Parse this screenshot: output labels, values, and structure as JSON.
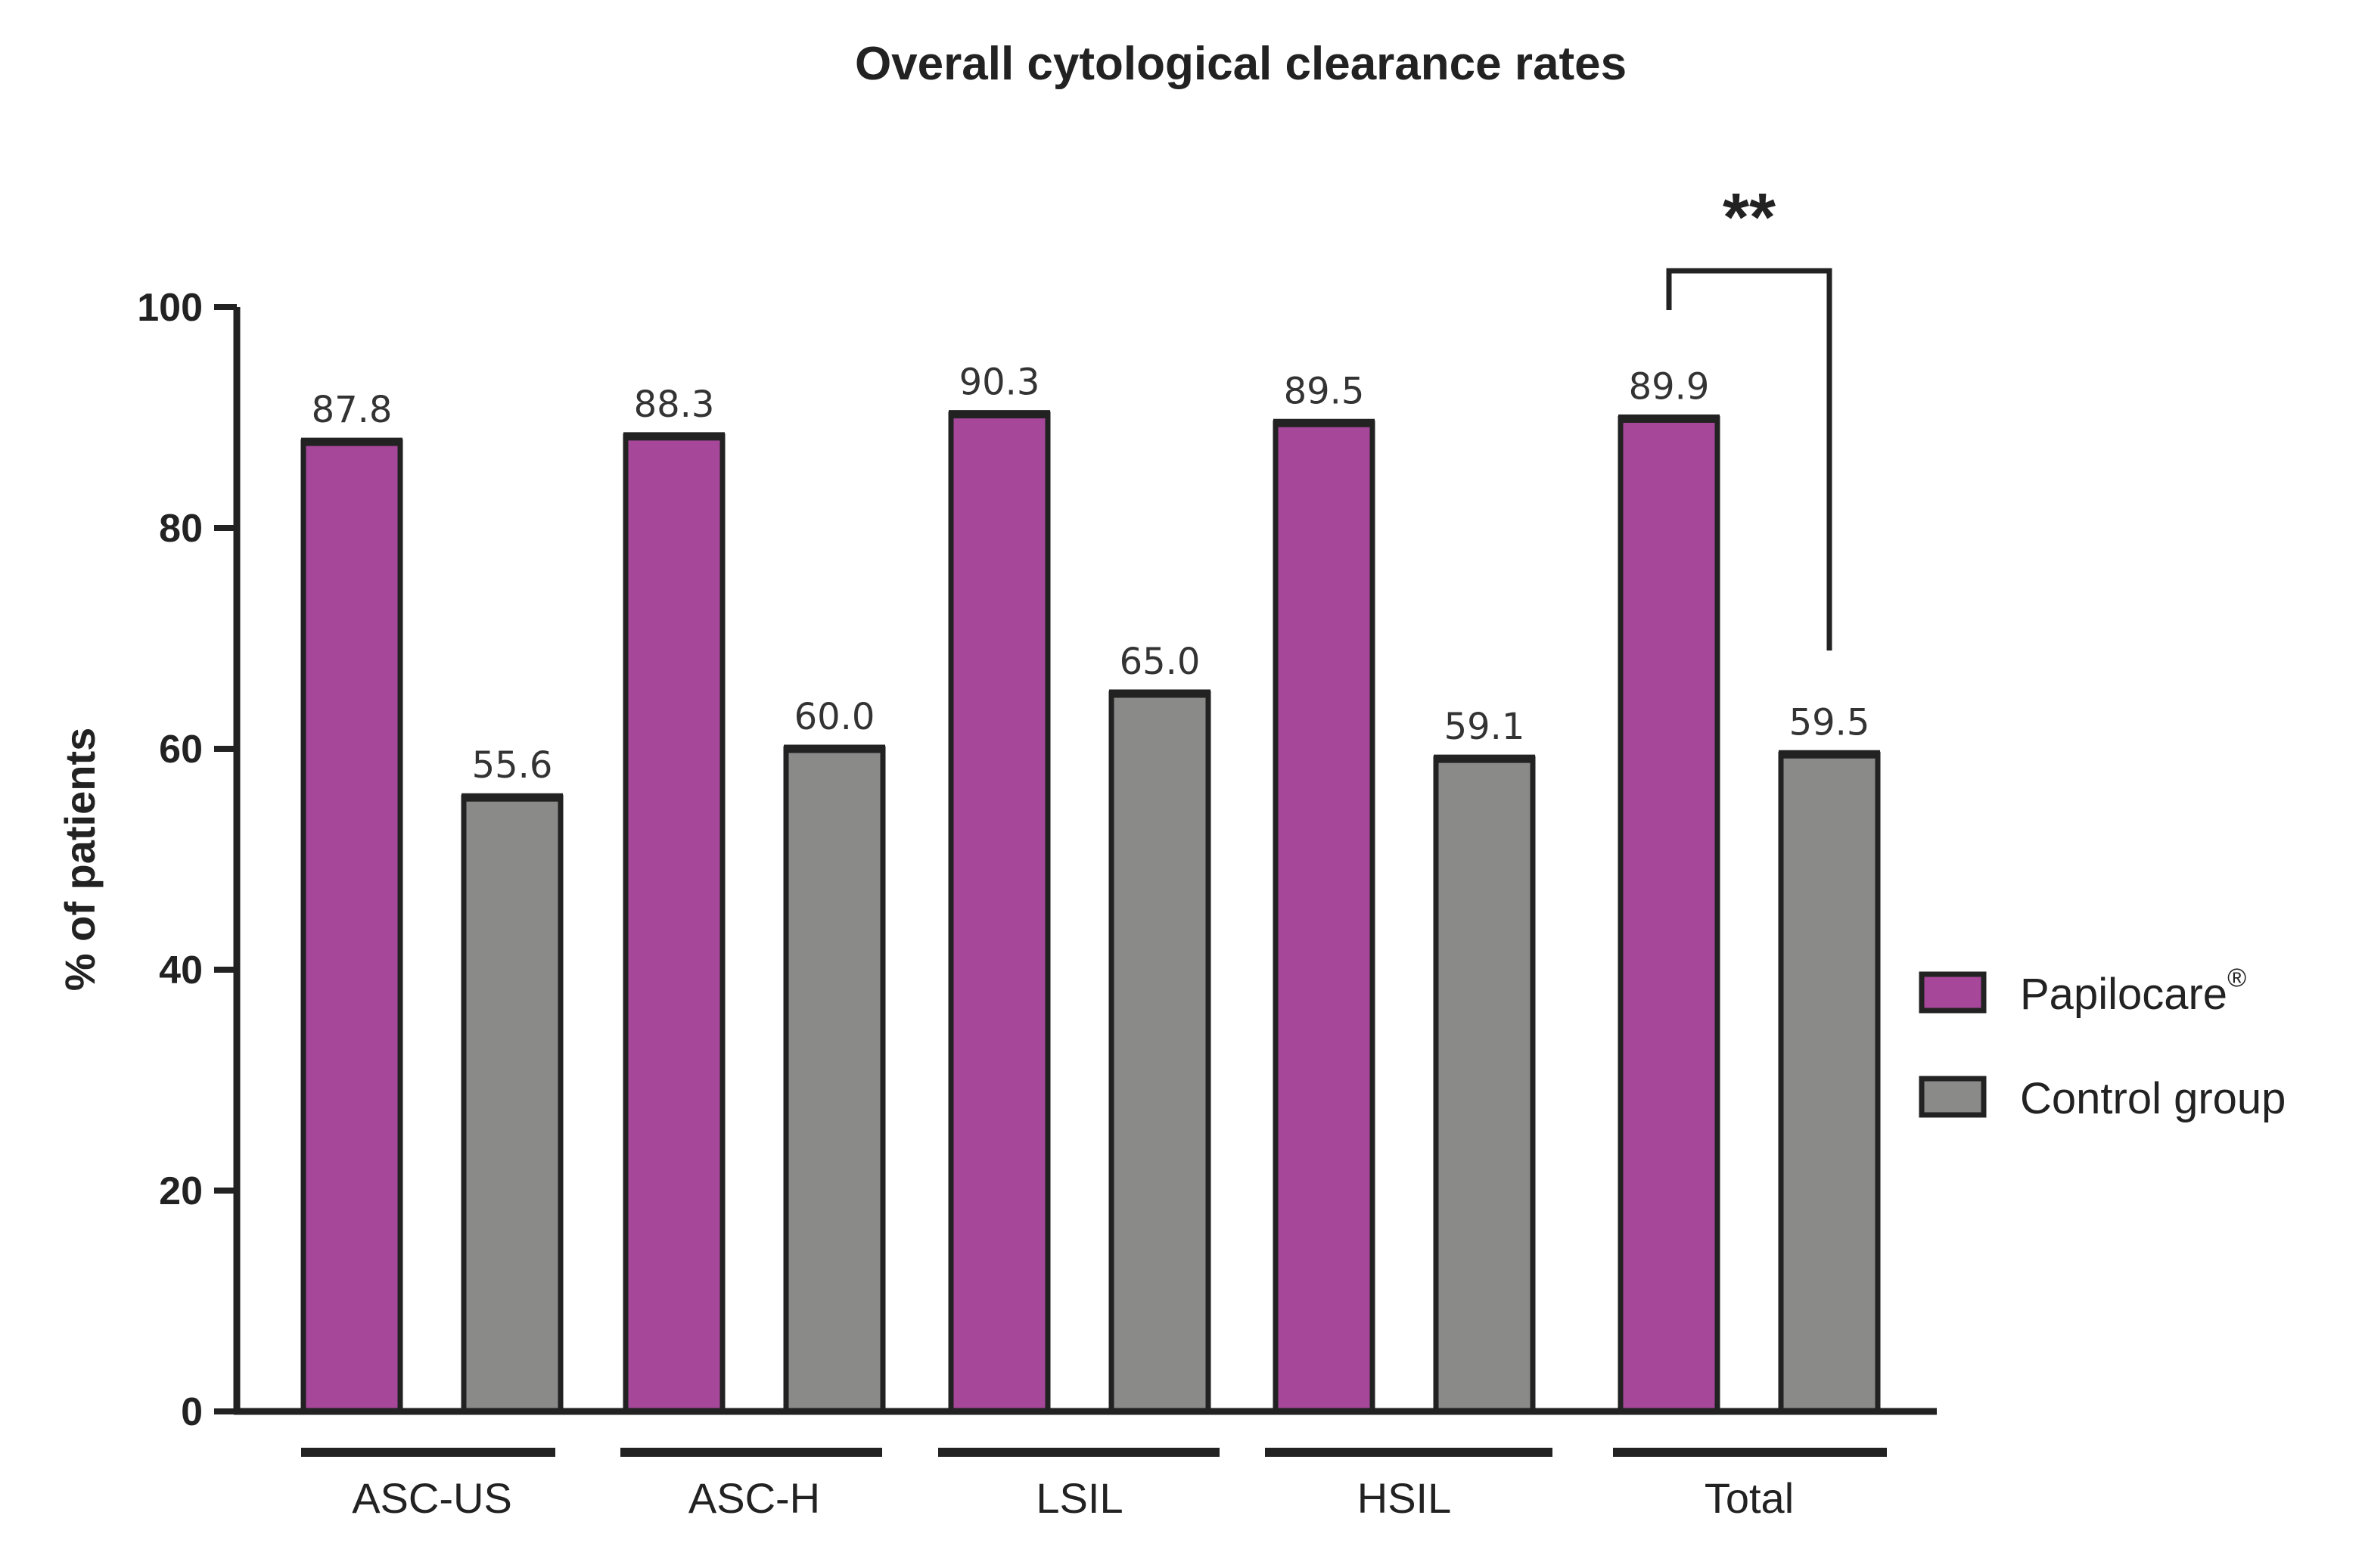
{
  "chart_data": {
    "type": "bar",
    "title": "Overall cytological clearance rates",
    "xlabel": "",
    "ylabel": "% of patients",
    "ylim": [
      0,
      100
    ],
    "yticks": [
      0,
      20,
      40,
      60,
      80,
      100
    ],
    "categories": [
      "ASC-US",
      "ASC-H",
      "LSIL",
      "HSIL",
      "Total"
    ],
    "series": [
      {
        "name": "Papilocare",
        "name_superscript": "®",
        "color": "#a6479a",
        "values": [
          87.8,
          88.3,
          90.3,
          89.5,
          89.9
        ],
        "labels": [
          "87.8",
          "88.3",
          "90.3",
          "89.5",
          "89.9"
        ]
      },
      {
        "name": "Control group",
        "name_superscript": "",
        "color": "#8a8a89",
        "values": [
          55.6,
          60.0,
          65.0,
          59.1,
          59.5
        ],
        "labels": [
          "55.6",
          "60.0",
          "65.0",
          "59.1",
          "59.5"
        ]
      }
    ],
    "annotations": [
      {
        "category": "Total",
        "text": "**",
        "type": "significance-bracket"
      }
    ],
    "legend_position": "right",
    "grid": false
  }
}
